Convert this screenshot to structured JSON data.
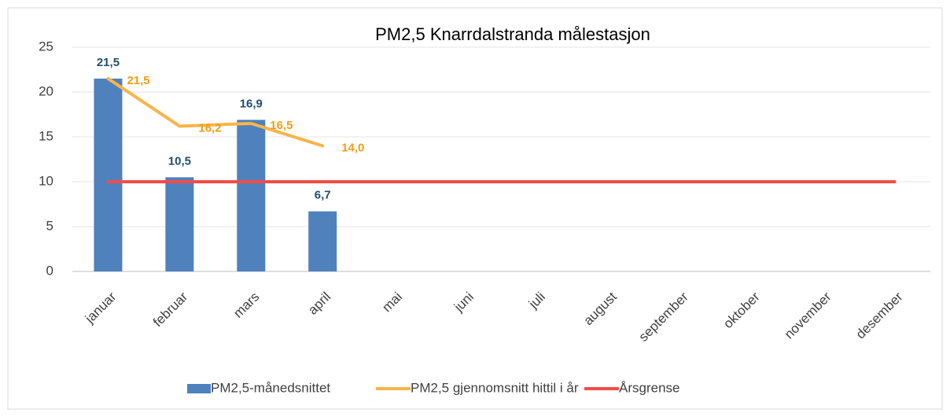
{
  "chart_data": {
    "type": "combo",
    "title": "PM2,5 Knarrdalstranda målestasjon",
    "categories": [
      "januar",
      "februar",
      "mars",
      "april",
      "mai",
      "juni",
      "juli",
      "august",
      "september",
      "oktober",
      "november",
      "desember"
    ],
    "series": [
      {
        "name": "PM2,5-månedsnittet",
        "type": "bar",
        "color": "#4f81bd",
        "label_color": "#1f4e6e",
        "values": [
          21.5,
          10.5,
          16.9,
          6.7,
          null,
          null,
          null,
          null,
          null,
          null,
          null,
          null
        ],
        "value_labels": [
          "21,5",
          "10,5",
          "16,9",
          "6,7",
          null,
          null,
          null,
          null,
          null,
          null,
          null,
          null
        ]
      },
      {
        "name": "PM2,5 gjennomsnitt hittil i år",
        "type": "line",
        "color": "#f9b44a",
        "label_color": "#f39c12",
        "values": [
          21.5,
          16.2,
          16.5,
          14.0,
          null,
          null,
          null,
          null,
          null,
          null,
          null,
          null
        ],
        "value_labels": [
          "21,5",
          "16,2",
          "16,5",
          "14,0",
          null,
          null,
          null,
          null,
          null,
          null,
          null,
          null
        ]
      },
      {
        "name": "Årsgrense",
        "type": "line",
        "color": "#f24b4b",
        "values": [
          10,
          10,
          10,
          10,
          10,
          10,
          10,
          10,
          10,
          10,
          10,
          10
        ]
      }
    ],
    "ylim": [
      0,
      25
    ],
    "yticks": [
      0,
      5,
      10,
      15,
      20,
      25
    ],
    "grid": true,
    "legend": "bottom"
  }
}
